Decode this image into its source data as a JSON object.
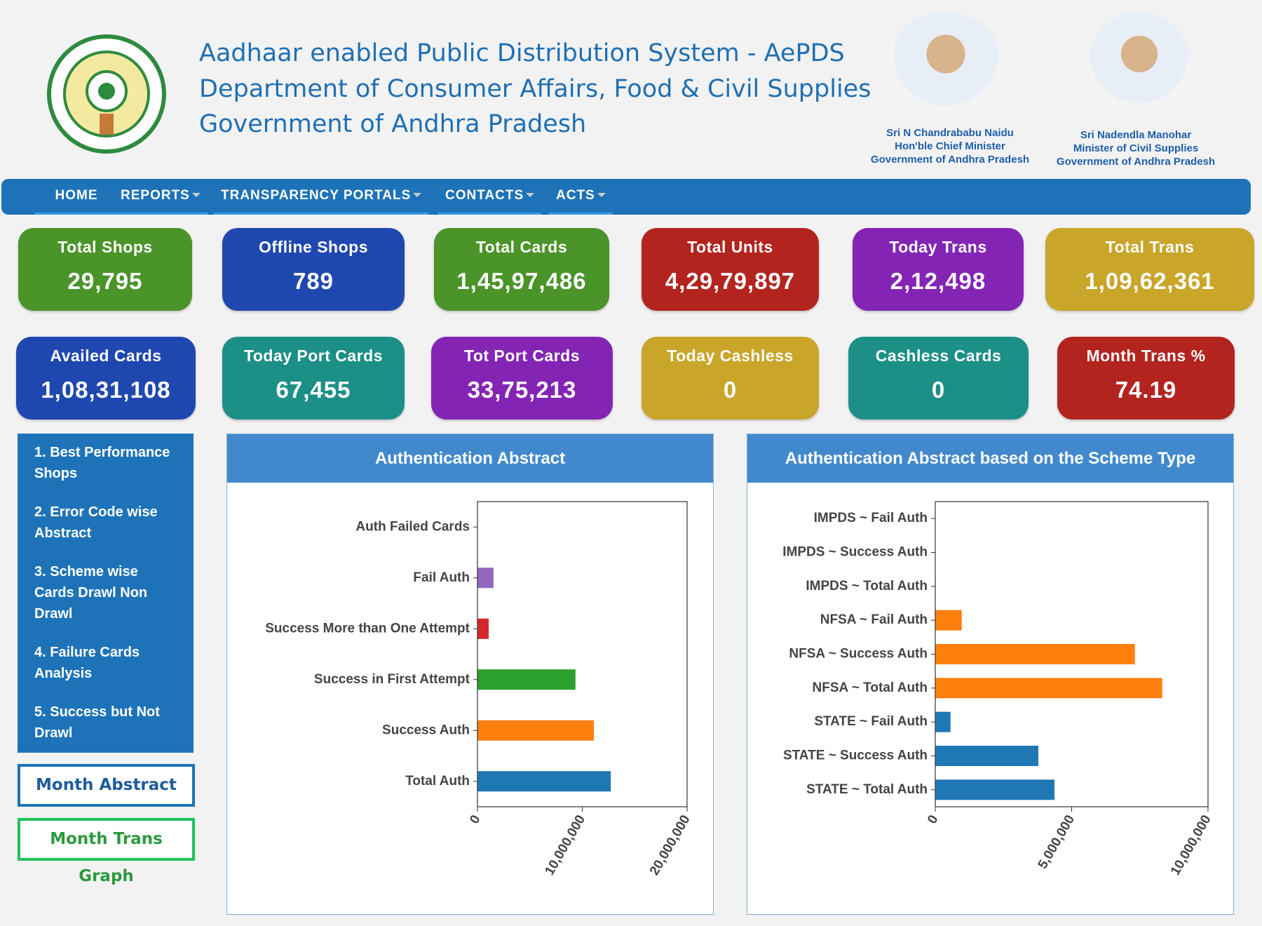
{
  "header": {
    "title_lines": [
      "Aadhaar enabled Public Distribution System - AePDS",
      "Department of Consumer Affairs, Food & Civil Supplies",
      "Government of Andhra Pradesh"
    ],
    "officials": [
      {
        "name": "Sri N Chandrababu Naidu",
        "role": "Hon'ble Chief Minister",
        "government": "Government of Andhra Pradesh"
      },
      {
        "name": "Sri Nadendla Manohar",
        "role": "Minister of Civil Supplies",
        "government": "Government of Andhra Pradesh"
      }
    ]
  },
  "nav": [
    "HOME",
    "REPORTS",
    "TRANSPARENCY PORTALS",
    "CONTACTS",
    "ACTS"
  ],
  "tiles": [
    {
      "label": "Total Shops",
      "value": "29,795",
      "color": "#4a9429"
    },
    {
      "label": "Offline Shops",
      "value": "789",
      "color": "#1f47b0"
    },
    {
      "label": "Total Cards",
      "value": "1,45,97,486",
      "color": "#4a9429"
    },
    {
      "label": "Total Units",
      "value": "4,29,79,897",
      "color": "#b3241f"
    },
    {
      "label": "Today Trans",
      "value": "2,12,498",
      "color": "#8424b5"
    },
    {
      "label": "Total Trans",
      "value": "1,09,62,361",
      "color": "#c9a52a"
    },
    {
      "label": "Availed Cards",
      "value": "1,08,31,108",
      "color": "#1f47b0"
    },
    {
      "label": "Today Port Cards",
      "value": "67,455",
      "color": "#1c8f86"
    },
    {
      "label": "Tot Port Cards",
      "value": "33,75,213",
      "color": "#8424b5"
    },
    {
      "label": "Today Cashless",
      "value": "0",
      "color": "#c9a52a"
    },
    {
      "label": "Cashless Cards",
      "value": "0",
      "color": "#1c8f86"
    },
    {
      "label": "Month Trans %",
      "value": "74.19",
      "color": "#b3241f"
    }
  ],
  "sidebar": {
    "links": [
      "1. Best Performance Shops",
      "2. Error Code wise Abstract",
      "3. Scheme wise Cards Drawl Non Drawl",
      "4. Failure Cards Analysis",
      "5. Success but Not Drawl"
    ],
    "buttons": [
      "Month Abstract",
      "Month Trans Graph"
    ]
  },
  "chart_data": [
    {
      "type": "bar",
      "orientation": "horizontal",
      "title": "Authentication Abstract",
      "categories": [
        "Auth Failed Cards",
        "Fail Auth",
        "Success More than One Attempt",
        "Success in First Attempt",
        "Success Auth",
        "Total Auth"
      ],
      "values": [
        30000,
        1530000,
        1070000,
        9350000,
        11110000,
        12720000
      ],
      "colors": [
        "#8c564b",
        "#9467bd",
        "#d62728",
        "#2ca02c",
        "#ff7f0e",
        "#1f77b4"
      ],
      "xlim": [
        0,
        20000000
      ],
      "xticks": [
        0,
        {
          "value": 10000000,
          "label": "10,000,000"
        },
        {
          "value": 20000000,
          "label": "20,000,000"
        }
      ]
    },
    {
      "type": "bar",
      "orientation": "horizontal",
      "title": "Authentication Abstract based on the Scheme Type",
      "categories": [
        "IMPDS ~ Fail Auth",
        "IMPDS ~ Success Auth",
        "IMPDS ~ Total Auth",
        "NFSA ~ Fail Auth",
        "NFSA ~ Success Auth",
        "NFSA ~ Total Auth",
        "STATE ~ Fail Auth",
        "STATE ~ Success Auth",
        "STATE ~ Total Auth"
      ],
      "values": [
        5000,
        10000,
        15000,
        970000,
        7320000,
        8320000,
        560000,
        3780000,
        4370000
      ],
      "colors": [
        "#2ca02c",
        "#2ca02c",
        "#2ca02c",
        "#ff7f0e",
        "#ff7f0e",
        "#ff7f0e",
        "#1f77b4",
        "#1f77b4",
        "#1f77b4"
      ],
      "xlim": [
        0,
        10000000
      ],
      "xticks": [
        0,
        {
          "value": 5000000,
          "label": "5,000,000"
        },
        {
          "value": 10000000,
          "label": "10,000,000"
        }
      ]
    }
  ]
}
